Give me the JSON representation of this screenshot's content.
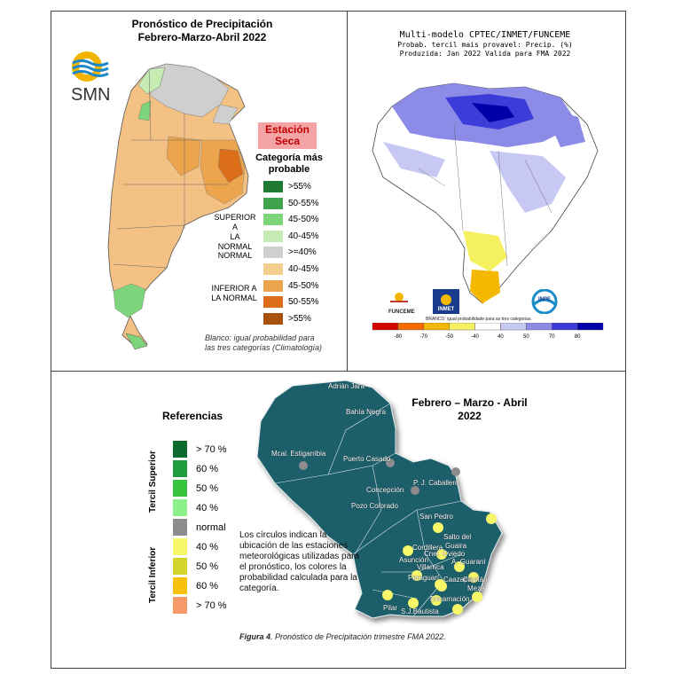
{
  "argentina": {
    "title_line1": "Pronóstico de Precipitación",
    "title_line2": "Febrero-Marzo-Abril 2022",
    "logo_text": "SMN",
    "dry_station_line1": "Estación",
    "dry_station_line2": "Seca",
    "legend_title_line1": "Categoría más",
    "legend_title_line2": "probable",
    "group_superior_line1": "SUPERIOR A",
    "group_superior_line2": "LA NORMAL",
    "group_normal": "NORMAL",
    "group_inferior_line1": "INFERIOR A",
    "group_inferior_line2": "LA NORMAL",
    "legend": [
      {
        "label": ">55%",
        "color": "#1e7a32"
      },
      {
        "label": "50-55%",
        "color": "#3fa34d"
      },
      {
        "label": "45-50%",
        "color": "#7ed47a"
      },
      {
        "label": "40-45%",
        "color": "#c6ecb4"
      },
      {
        "label": ">=40%",
        "color": "#cfcfcf"
      },
      {
        "label": "40-45%",
        "color": "#f6cf8e"
      },
      {
        "label": "45-50%",
        "color": "#eca54c"
      },
      {
        "label": "50-55%",
        "color": "#dc6e1a"
      },
      {
        "label": ">55%",
        "color": "#a8520e"
      }
    ],
    "note_line1": "Blanco: igual probabilidad para",
    "note_line2": "las tres categorías (Climatología)"
  },
  "brazil": {
    "title_line1": "Multi-modelo CPTEC/INMET/FUNCEME",
    "title_line2": "Probab. tercil mais provavel: Precip. (%)",
    "title_line3": "Produzida: Jan 2022   Valida para FMA 2022",
    "logo_funceme": "FUNCEME",
    "logo_inmet": "INMET",
    "logo_inpe": "INPE",
    "colorbar_note": "BRANCO: igual probabilidade para as tres categorias.",
    "colorbar_ticks": [
      "-80",
      "-70",
      "-50",
      "-40",
      "40",
      "50",
      "70",
      "80"
    ],
    "colorbar_colors": [
      "#d40000",
      "#f26a00",
      "#f5b800",
      "#f5f060",
      "#ffffff",
      "#c8c8f5",
      "#8c8ce8",
      "#3c3cd8",
      "#0000a8"
    ]
  },
  "paraguay": {
    "title_line1": "Febrero – Marzo - Abril",
    "title_line2": "2022",
    "legend_title": "Referencias",
    "tercil_superior": "Tercil Superior",
    "tercil_inferior": "Tercil Inferior",
    "legend": [
      {
        "label": "> 70 %",
        "color": "#0b6b2e"
      },
      {
        "label": "60 %",
        "color": "#1f9a3e"
      },
      {
        "label": "50 %",
        "color": "#38c43c"
      },
      {
        "label": "40 %",
        "color": "#8ef08a"
      },
      {
        "label": "normal",
        "color": "#8c8c8c"
      },
      {
        "label": "40 %",
        "color": "#f7f76a"
      },
      {
        "label": "50 %",
        "color": "#d4d42c"
      },
      {
        "label": "60 %",
        "color": "#f7c20a"
      },
      {
        "label": "> 70 %",
        "color": "#f79a6a"
      }
    ],
    "note": "Los círculos indican la ubicación de las estaciones meteorológicas utilizadas para el pronóstico, los colores la probabilidad calculada para la categoría.",
    "caption_bold": "Figura 4",
    "caption_rest": ". Pronóstico de Precipitación trimestre FMA 2022.",
    "cities": {
      "adrian_jara": "Adrián Jara",
      "bahia_negra": "Bahía Negra",
      "mcal_estigarribia": "Mcal. Estigarribia",
      "puerto_casado": "Puerto Casado",
      "pj_caballero": "P. J. Caballero",
      "concepcion": "Concepción",
      "pozo_colorado": "Pozo Colorado",
      "san_pedro": "San Pedro",
      "salto_del_guaira_1": "Salto del",
      "salto_del_guaira_2": "Guaira",
      "cnel_oviedo": "Cnel. Oviedo",
      "a_guarani": "A. Guaraní",
      "cordillera": "Cordillera",
      "asuncion": "Asunción",
      "villarrica": "Villarrica",
      "paraguari": "Paraguarí",
      "caazapa": "Caazapá",
      "capitan": "Capitán",
      "meza": "Meza",
      "encarnacion": "Encarnación",
      "pilar": "Pilar",
      "sj_bautista": "S.J.Bautista"
    }
  }
}
